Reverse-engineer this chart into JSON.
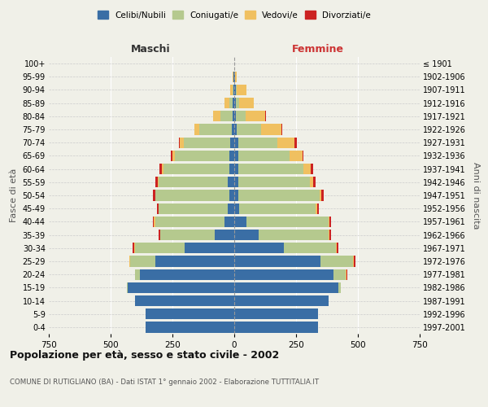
{
  "age_groups": [
    "0-4",
    "5-9",
    "10-14",
    "15-19",
    "20-24",
    "25-29",
    "30-34",
    "35-39",
    "40-44",
    "45-49",
    "50-54",
    "55-59",
    "60-64",
    "65-69",
    "70-74",
    "75-79",
    "80-84",
    "85-89",
    "90-94",
    "95-99",
    "100+"
  ],
  "birth_years": [
    "1997-2001",
    "1992-1996",
    "1987-1991",
    "1982-1986",
    "1977-1981",
    "1972-1976",
    "1967-1971",
    "1962-1966",
    "1957-1961",
    "1952-1956",
    "1947-1951",
    "1942-1946",
    "1937-1941",
    "1932-1936",
    "1927-1931",
    "1922-1926",
    "1917-1921",
    "1912-1916",
    "1907-1911",
    "1902-1906",
    "≤ 1901"
  ],
  "male_celibe": [
    360,
    360,
    400,
    430,
    380,
    320,
    200,
    80,
    40,
    25,
    20,
    25,
    20,
    20,
    15,
    10,
    5,
    5,
    3,
    2,
    0
  ],
  "male_coniugato": [
    0,
    0,
    2,
    5,
    20,
    100,
    200,
    220,
    280,
    280,
    300,
    280,
    265,
    220,
    190,
    130,
    50,
    15,
    5,
    2,
    0
  ],
  "male_vedovo": [
    0,
    0,
    0,
    0,
    2,
    5,
    5,
    0,
    5,
    0,
    0,
    5,
    8,
    10,
    15,
    20,
    30,
    20,
    10,
    2,
    0
  ],
  "male_divorziato": [
    0,
    0,
    0,
    0,
    0,
    0,
    5,
    5,
    5,
    8,
    8,
    8,
    8,
    5,
    5,
    0,
    0,
    0,
    0,
    0,
    0
  ],
  "female_celibe": [
    340,
    340,
    380,
    420,
    400,
    350,
    200,
    100,
    50,
    20,
    15,
    15,
    15,
    15,
    15,
    10,
    5,
    5,
    5,
    2,
    0
  ],
  "female_coniugata": [
    0,
    0,
    2,
    10,
    50,
    130,
    210,
    280,
    330,
    310,
    330,
    290,
    265,
    210,
    160,
    100,
    40,
    15,
    5,
    2,
    0
  ],
  "female_vedova": [
    0,
    0,
    0,
    2,
    5,
    5,
    5,
    5,
    5,
    5,
    8,
    15,
    30,
    50,
    70,
    80,
    80,
    60,
    40,
    5,
    0
  ],
  "female_divorziata": [
    0,
    0,
    0,
    0,
    2,
    5,
    5,
    5,
    8,
    8,
    8,
    8,
    8,
    5,
    8,
    5,
    2,
    0,
    0,
    0,
    0
  ],
  "colors": {
    "celibe": "#3a6ea5",
    "coniugato": "#b5c98e",
    "vedovo": "#f0c060",
    "divorziato": "#cc2222"
  },
  "xlim": 750,
  "title": "Popolazione per età, sesso e stato civile - 2002",
  "subtitle": "COMUNE DI RUTIGLIANO (BA) - Dati ISTAT 1° gennaio 2002 - Elaborazione TUTTITALIA.IT",
  "ylabel_left": "Fasce di età",
  "ylabel_right": "Anni di nascita",
  "xlabel_left": "Maschi",
  "xlabel_right": "Femmine",
  "legend_labels": [
    "Celibi/Nubili",
    "Coniugati/e",
    "Vedovi/e",
    "Divorziati/e"
  ],
  "bg_color": "#f0f0e8",
  "bar_height": 0.82
}
